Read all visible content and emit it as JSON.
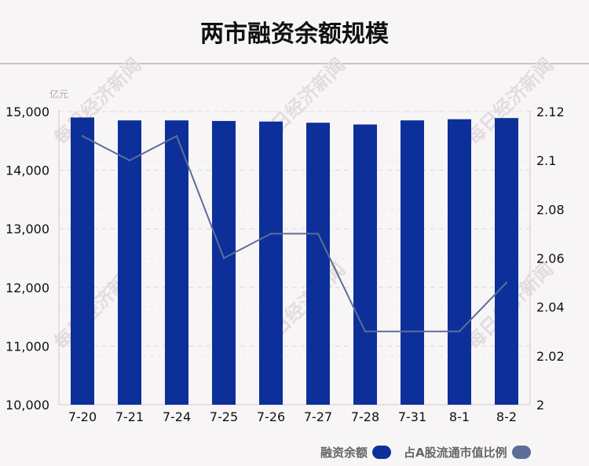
{
  "chart_data": {
    "type": "bar",
    "title": "两市融资余额规模",
    "y_unit": "亿元",
    "categories": [
      "7-20",
      "7-21",
      "7-24",
      "7-25",
      "7-26",
      "7-27",
      "7-28",
      "7-31",
      "8-1",
      "8-2"
    ],
    "series": [
      {
        "name": "融资余额",
        "type": "bar",
        "axis": "left",
        "color": "#0d2f9a",
        "values": [
          14900,
          14850,
          14850,
          14840,
          14830,
          14810,
          14780,
          14850,
          14870,
          14890
        ]
      },
      {
        "name": "占A股流通市值比例",
        "type": "line",
        "axis": "right",
        "color": "#5c6e98",
        "values": [
          2.11,
          2.1,
          2.11,
          2.06,
          2.07,
          2.07,
          2.03,
          2.03,
          2.03,
          2.05
        ]
      }
    ],
    "y_left": {
      "min": 10000,
      "max": 15000,
      "ticks": [
        10000,
        11000,
        12000,
        13000,
        14000,
        15000
      ],
      "tick_labels": [
        "10,000",
        "11,000",
        "12,000",
        "13,000",
        "14,000",
        "15,000"
      ]
    },
    "y_right": {
      "min": 2,
      "max": 2.12,
      "ticks": [
        2,
        2.02,
        2.04,
        2.06,
        2.08,
        2.1,
        2.12
      ],
      "tick_labels": [
        "2",
        "2.02",
        "2.04",
        "2.06",
        "2.08",
        "2.1",
        "2.12"
      ]
    },
    "grid": true,
    "legend_position": "bottom-right"
  },
  "watermark": "每日经济新闻"
}
